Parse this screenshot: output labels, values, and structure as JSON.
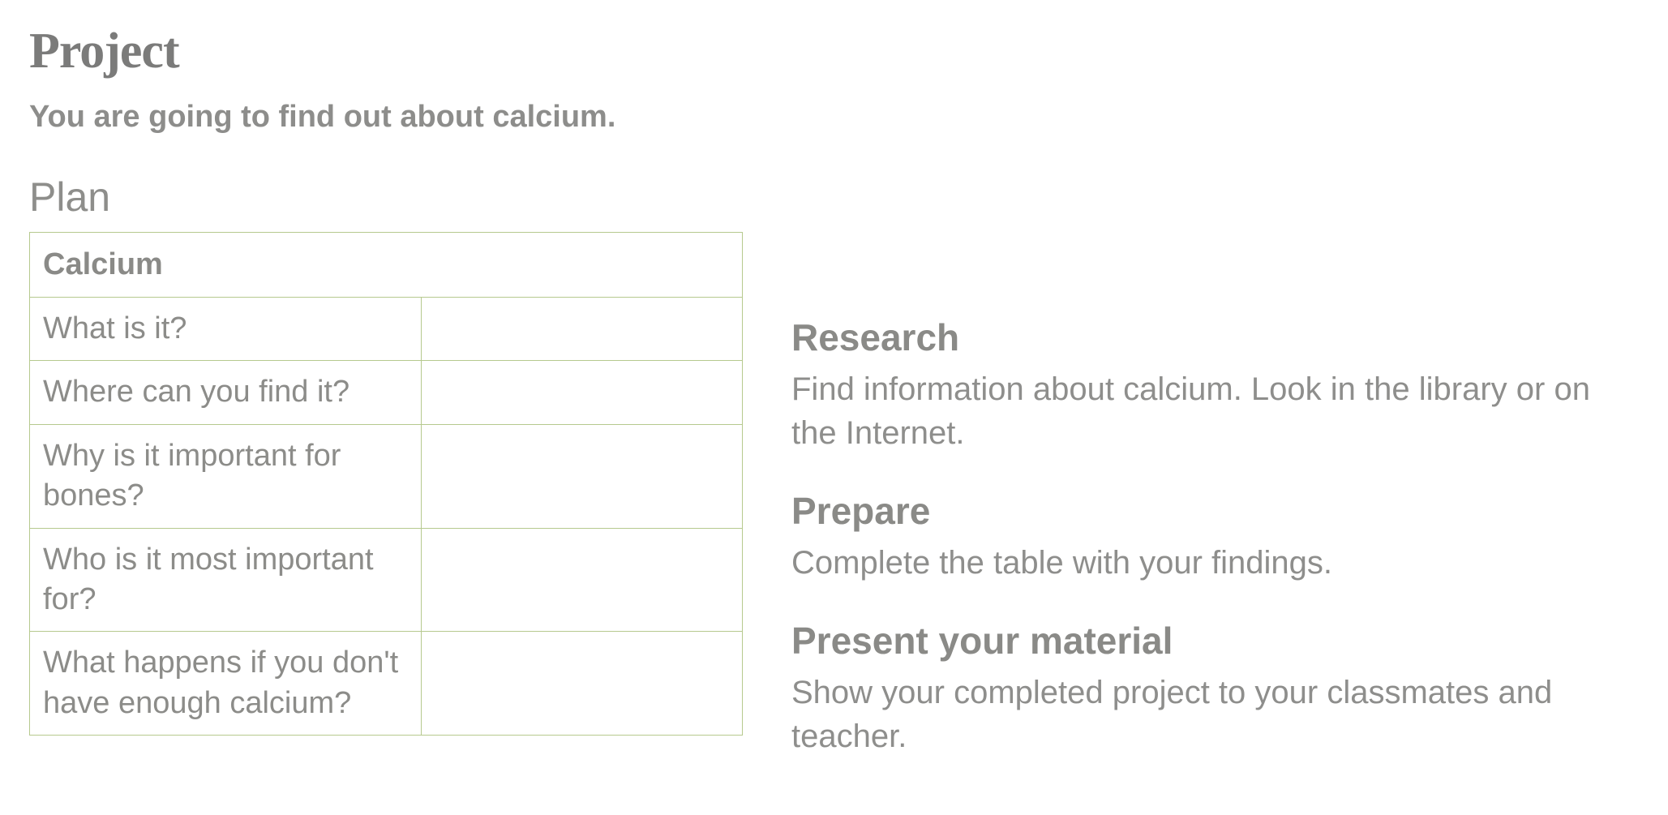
{
  "project": {
    "title": "Project",
    "subtitle": "You are going to find out about calcium."
  },
  "plan": {
    "heading": "Plan",
    "table_title": "Calcium",
    "rows": [
      {
        "question": "What is it?",
        "answer": ""
      },
      {
        "question": "Where can you find it?",
        "answer": ""
      },
      {
        "question": "Why is it important for bones?",
        "answer": ""
      },
      {
        "question": "Who is it most important for?",
        "answer": ""
      },
      {
        "question": "What happens if you don't have enough calcium?",
        "answer": ""
      }
    ]
  },
  "sections": [
    {
      "heading": "Research",
      "text": "Find information about calcium. Look in the library or on the Internet."
    },
    {
      "heading": "Prepare",
      "text": "Complete the table with your findings."
    },
    {
      "heading": "Present your material",
      "text": "Show your completed project to your classmates and teacher."
    }
  ],
  "colors": {
    "text_gray": "#8c8c89",
    "heading_gray": "#8a8a87",
    "table_border": "#b6c98e",
    "background": "#ffffff"
  },
  "typography": {
    "project_title_fontsize": 62,
    "subtitle_fontsize": 38,
    "plan_heading_fontsize": 50,
    "table_fontsize": 38,
    "section_heading_fontsize": 46,
    "section_text_fontsize": 40
  }
}
